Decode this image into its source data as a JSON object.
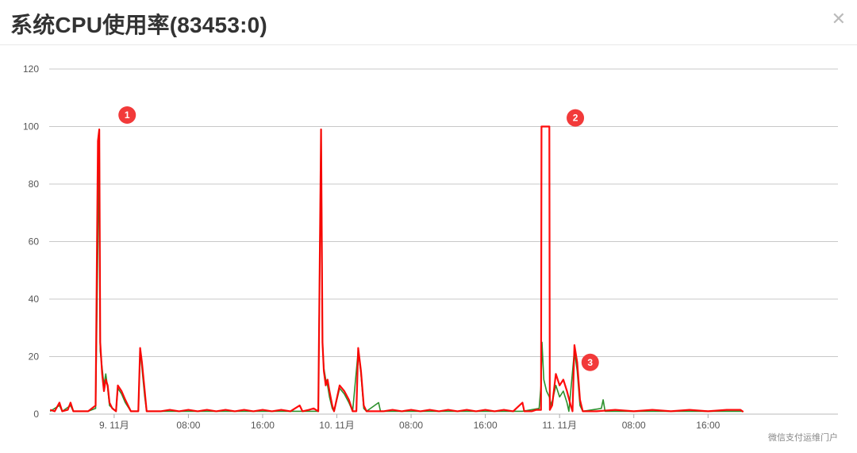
{
  "window": {
    "title": "系统CPU使用率(83453:0)",
    "close_icon": "close-icon"
  },
  "watermark": "微信支付运维门户",
  "colors": {
    "series_red": "#ff0000",
    "series_green": "#228b22",
    "marker": "#f23a3a",
    "grid": "#c8c8c8"
  },
  "chart_data": {
    "type": "line",
    "ylim": [
      0,
      120
    ],
    "y_ticks": [
      0,
      20,
      40,
      60,
      80,
      100,
      120
    ],
    "x_range": [
      -7,
      78
    ],
    "x_ticks": [
      {
        "x": 0,
        "label": "9. 11月"
      },
      {
        "x": 8,
        "label": "08:00"
      },
      {
        "x": 16,
        "label": "16:00"
      },
      {
        "x": 24,
        "label": "10. 11月"
      },
      {
        "x": 32,
        "label": "08:00"
      },
      {
        "x": 40,
        "label": "16:00"
      },
      {
        "x": 48,
        "label": "11. 11月"
      },
      {
        "x": 56,
        "label": "08:00"
      },
      {
        "x": 64,
        "label": "16:00"
      }
    ],
    "series": [
      {
        "color": "#ff0000",
        "points": [
          [
            -6.9,
            1.5
          ],
          [
            -6.4,
            1
          ],
          [
            -5.9,
            4
          ],
          [
            -5.6,
            1
          ],
          [
            -5.0,
            1.5
          ],
          [
            -4.7,
            4
          ],
          [
            -4.4,
            1
          ],
          [
            -3.5,
            1
          ],
          [
            -2.8,
            1
          ],
          [
            -2.4,
            2
          ],
          [
            -2.0,
            3
          ],
          [
            -1.75,
            95
          ],
          [
            -1.6,
            99
          ],
          [
            -1.5,
            25
          ],
          [
            -1.3,
            14
          ],
          [
            -1.1,
            8
          ],
          [
            -0.9,
            12
          ],
          [
            -0.7,
            10
          ],
          [
            -0.5,
            4
          ],
          [
            -0.2,
            2
          ],
          [
            0.2,
            1
          ],
          [
            0.4,
            10
          ],
          [
            0.8,
            8
          ],
          [
            1.2,
            5
          ],
          [
            1.5,
            3
          ],
          [
            1.8,
            1
          ],
          [
            2.6,
            1
          ],
          [
            2.8,
            23
          ],
          [
            3.0,
            18
          ],
          [
            3.3,
            8
          ],
          [
            3.5,
            1
          ],
          [
            5,
            1
          ],
          [
            6,
            1.5
          ],
          [
            7,
            1
          ],
          [
            8,
            1.5
          ],
          [
            9,
            1
          ],
          [
            10,
            1.5
          ],
          [
            11,
            1
          ],
          [
            12,
            1.5
          ],
          [
            13,
            1
          ],
          [
            14,
            1.5
          ],
          [
            15,
            1
          ],
          [
            16,
            1.5
          ],
          [
            17,
            1
          ],
          [
            18,
            1.5
          ],
          [
            19,
            1
          ],
          [
            20,
            3
          ],
          [
            20.3,
            1
          ],
          [
            21,
            1.5
          ],
          [
            21.5,
            2
          ],
          [
            22,
            1
          ],
          [
            22.3,
            99
          ],
          [
            22.45,
            25
          ],
          [
            22.6,
            15
          ],
          [
            22.8,
            10
          ],
          [
            23.0,
            12
          ],
          [
            23.2,
            8
          ],
          [
            23.5,
            3
          ],
          [
            23.7,
            1
          ],
          [
            24.3,
            10
          ],
          [
            24.8,
            8
          ],
          [
            25.3,
            5
          ],
          [
            25.7,
            1
          ],
          [
            26.1,
            1
          ],
          [
            26.3,
            23
          ],
          [
            26.6,
            15
          ],
          [
            26.9,
            3
          ],
          [
            27.2,
            1
          ],
          [
            29,
            1
          ],
          [
            30,
            1.5
          ],
          [
            31,
            1
          ],
          [
            32,
            1.5
          ],
          [
            33,
            1
          ],
          [
            34,
            1.5
          ],
          [
            35,
            1
          ],
          [
            36,
            1.5
          ],
          [
            37,
            1
          ],
          [
            38,
            1.5
          ],
          [
            39,
            1
          ],
          [
            40,
            1.5
          ],
          [
            41,
            1
          ],
          [
            42,
            1.5
          ],
          [
            43,
            1
          ],
          [
            44,
            4
          ],
          [
            44.2,
            1
          ],
          [
            45,
            1
          ],
          [
            45.5,
            1.5
          ],
          [
            46.0,
            1.5
          ],
          [
            46.05,
            100
          ],
          [
            46.2,
            100
          ],
          [
            46.9,
            100
          ],
          [
            46.95,
            1.5
          ],
          [
            47.2,
            3
          ],
          [
            47.6,
            14
          ],
          [
            48.0,
            10
          ],
          [
            48.4,
            12
          ],
          [
            48.8,
            8
          ],
          [
            49.2,
            3
          ],
          [
            49.4,
            1
          ],
          [
            49.6,
            24
          ],
          [
            49.9,
            18
          ],
          [
            50.2,
            5
          ],
          [
            50.5,
            1
          ],
          [
            52,
            1
          ],
          [
            54,
            1.5
          ],
          [
            56,
            1
          ],
          [
            58,
            1.5
          ],
          [
            60,
            1
          ],
          [
            62,
            1.5
          ],
          [
            64,
            1
          ],
          [
            66,
            1.5
          ],
          [
            67.5,
            1.5
          ],
          [
            67.8,
            0.8
          ]
        ]
      },
      {
        "color": "#228b22",
        "points": [
          [
            -6.9,
            1
          ],
          [
            -5.9,
            3
          ],
          [
            -5.6,
            1
          ],
          [
            -4.7,
            3
          ],
          [
            -4.4,
            1
          ],
          [
            -2.8,
            1
          ],
          [
            -2.0,
            2
          ],
          [
            -1.75,
            60
          ],
          [
            -1.6,
            99
          ],
          [
            -1.5,
            22
          ],
          [
            -1.3,
            16
          ],
          [
            -1.1,
            10
          ],
          [
            -0.9,
            14
          ],
          [
            -0.7,
            9
          ],
          [
            -0.5,
            3
          ],
          [
            0.2,
            1
          ],
          [
            0.4,
            9
          ],
          [
            0.8,
            7
          ],
          [
            1.2,
            4
          ],
          [
            1.8,
            1
          ],
          [
            2.6,
            1
          ],
          [
            2.8,
            22
          ],
          [
            3.0,
            16
          ],
          [
            3.3,
            6
          ],
          [
            3.5,
            1
          ],
          [
            6,
            1
          ],
          [
            10,
            1
          ],
          [
            14,
            1
          ],
          [
            18,
            1
          ],
          [
            22,
            1
          ],
          [
            22.3,
            99
          ],
          [
            22.45,
            25
          ],
          [
            22.6,
            16
          ],
          [
            22.8,
            12
          ],
          [
            23.0,
            10
          ],
          [
            23.2,
            6
          ],
          [
            23.5,
            2
          ],
          [
            23.7,
            1
          ],
          [
            24.3,
            9
          ],
          [
            24.8,
            7
          ],
          [
            25.3,
            4
          ],
          [
            25.7,
            1
          ],
          [
            26.3,
            22
          ],
          [
            26.6,
            14
          ],
          [
            26.9,
            2
          ],
          [
            27.2,
            1
          ],
          [
            28.5,
            4
          ],
          [
            28.7,
            1
          ],
          [
            32,
            1
          ],
          [
            36,
            1
          ],
          [
            40,
            1
          ],
          [
            44,
            1
          ],
          [
            45.8,
            2
          ],
          [
            46.0,
            10
          ],
          [
            46.1,
            25
          ],
          [
            46.3,
            12
          ],
          [
            46.6,
            8
          ],
          [
            46.9,
            6
          ],
          [
            47.1,
            3
          ],
          [
            47.6,
            10
          ],
          [
            48.0,
            6
          ],
          [
            48.4,
            8
          ],
          [
            48.8,
            4
          ],
          [
            49.0,
            1
          ],
          [
            49.6,
            22
          ],
          [
            49.9,
            15
          ],
          [
            50.2,
            3
          ],
          [
            50.5,
            1
          ],
          [
            52.5,
            2
          ],
          [
            52.7,
            5
          ],
          [
            52.9,
            1
          ],
          [
            56,
            1
          ],
          [
            60,
            1
          ],
          [
            64,
            1
          ],
          [
            67.8,
            1
          ]
        ]
      }
    ],
    "markers": [
      {
        "label": "1",
        "x": 1.4,
        "y": 104
      },
      {
        "label": "2",
        "x": 49.7,
        "y": 103
      },
      {
        "label": "3",
        "x": 51.3,
        "y": 18
      }
    ]
  }
}
